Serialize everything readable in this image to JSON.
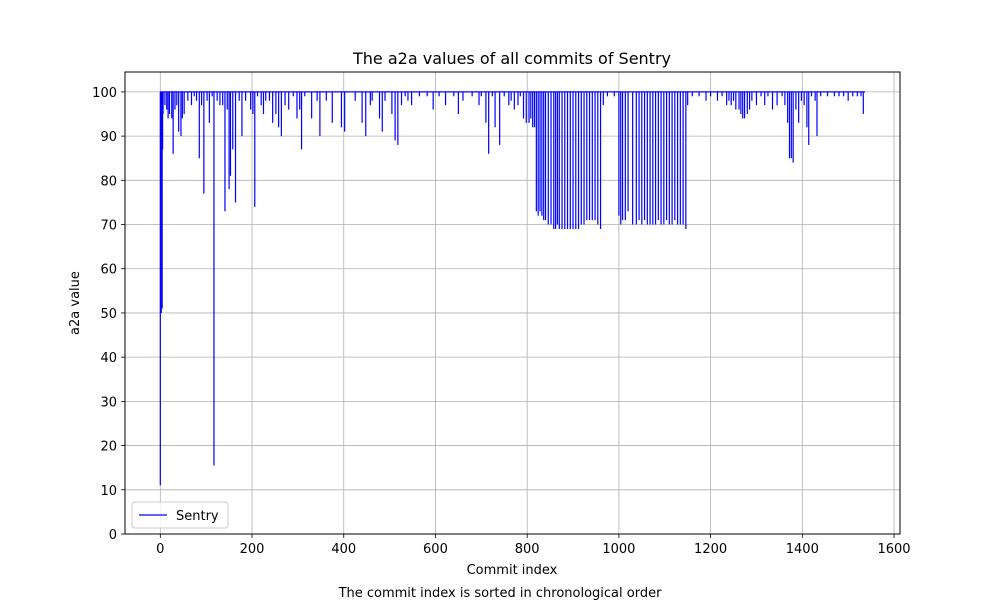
{
  "chart_data": {
    "type": "line",
    "title": "The a2a values of all commits of Sentry",
    "xlabel": "Commit index",
    "ylabel": "a2a value",
    "caption": "The commit index is sorted in chronological order",
    "xlim": [
      -77,
      1613
    ],
    "ylim": [
      0,
      104.5
    ],
    "xticks": [
      0,
      200,
      400,
      600,
      800,
      1000,
      1200,
      1400,
      1600
    ],
    "yticks": [
      0,
      10,
      20,
      30,
      40,
      50,
      60,
      70,
      80,
      90,
      100
    ],
    "grid": true,
    "legend_position": "lower-left",
    "baseline": 100,
    "series": [
      {
        "name": "Sentry",
        "color": "#0000ff",
        "x_range": [
          0,
          1537
        ],
        "dips": [
          [
            0,
            11
          ],
          [
            1,
            77
          ],
          [
            2,
            50
          ],
          [
            3,
            88
          ],
          [
            4,
            51
          ],
          [
            5,
            87
          ],
          [
            6,
            95
          ],
          [
            10,
            97
          ],
          [
            14,
            96
          ],
          [
            17,
            94
          ],
          [
            20,
            95
          ],
          [
            25,
            94
          ],
          [
            28,
            86
          ],
          [
            32,
            96
          ],
          [
            36,
            97
          ],
          [
            40,
            91
          ],
          [
            45,
            90
          ],
          [
            48,
            94
          ],
          [
            52,
            95
          ],
          [
            60,
            98
          ],
          [
            68,
            97
          ],
          [
            74,
            99
          ],
          [
            79,
            98
          ],
          [
            85,
            85
          ],
          [
            90,
            97
          ],
          [
            95,
            77
          ],
          [
            102,
            98
          ],
          [
            107,
            93
          ],
          [
            113,
            99
          ],
          [
            117,
            15.5
          ],
          [
            124,
            98
          ],
          [
            130,
            97
          ],
          [
            136,
            97
          ],
          [
            141,
            73
          ],
          [
            146,
            96
          ],
          [
            150,
            78
          ],
          [
            153,
            81
          ],
          [
            158,
            87
          ],
          [
            164,
            75
          ],
          [
            172,
            98
          ],
          [
            178,
            90
          ],
          [
            186,
            98
          ],
          [
            197,
            96
          ],
          [
            202,
            95
          ],
          [
            206,
            74
          ],
          [
            212,
            99
          ],
          [
            220,
            97
          ],
          [
            225,
            95
          ],
          [
            230,
            98
          ],
          [
            238,
            98
          ],
          [
            245,
            93
          ],
          [
            252,
            95
          ],
          [
            258,
            92
          ],
          [
            264,
            90
          ],
          [
            272,
            97
          ],
          [
            280,
            96
          ],
          [
            290,
            99
          ],
          [
            298,
            94
          ],
          [
            304,
            96
          ],
          [
            308,
            87
          ],
          [
            315,
            99
          ],
          [
            330,
            94
          ],
          [
            342,
            98
          ],
          [
            348,
            90
          ],
          [
            362,
            98
          ],
          [
            375,
            93
          ],
          [
            395,
            92
          ],
          [
            402,
            91
          ],
          [
            425,
            98
          ],
          [
            440,
            93
          ],
          [
            448,
            90
          ],
          [
            458,
            97
          ],
          [
            462,
            98
          ],
          [
            478,
            94
          ],
          [
            484,
            91
          ],
          [
            490,
            98
          ],
          [
            505,
            95
          ],
          [
            512,
            89
          ],
          [
            518,
            88
          ],
          [
            526,
            97
          ],
          [
            534,
            99
          ],
          [
            540,
            98
          ],
          [
            548,
            97
          ],
          [
            565,
            99
          ],
          [
            582,
            99
          ],
          [
            595,
            96
          ],
          [
            608,
            99
          ],
          [
            622,
            97
          ],
          [
            640,
            99
          ],
          [
            650,
            95
          ],
          [
            660,
            98
          ],
          [
            680,
            99
          ],
          [
            695,
            97
          ],
          [
            700,
            99
          ],
          [
            710,
            93
          ],
          [
            716,
            86
          ],
          [
            724,
            99
          ],
          [
            730,
            92
          ],
          [
            740,
            88
          ],
          [
            750,
            99
          ],
          [
            760,
            97
          ],
          [
            765,
            98
          ],
          [
            772,
            96
          ],
          [
            780,
            97
          ],
          [
            785,
            99
          ],
          [
            792,
            94
          ],
          [
            798,
            93
          ],
          [
            804,
            93
          ],
          [
            808,
            94
          ],
          [
            812,
            92
          ],
          [
            816,
            92
          ],
          [
            820,
            73
          ],
          [
            824,
            72
          ],
          [
            828,
            73
          ],
          [
            832,
            72
          ],
          [
            836,
            71
          ],
          [
            840,
            71
          ],
          [
            846,
            70
          ],
          [
            852,
            70
          ],
          [
            858,
            69
          ],
          [
            862,
            69
          ],
          [
            866,
            70
          ],
          [
            870,
            69
          ],
          [
            876,
            69
          ],
          [
            882,
            69
          ],
          [
            888,
            69
          ],
          [
            894,
            69
          ],
          [
            900,
            69
          ],
          [
            906,
            69
          ],
          [
            912,
            69
          ],
          [
            918,
            70
          ],
          [
            924,
            70
          ],
          [
            930,
            71
          ],
          [
            936,
            71
          ],
          [
            942,
            71
          ],
          [
            948,
            71
          ],
          [
            954,
            70
          ],
          [
            960,
            69
          ],
          [
            966,
            97
          ],
          [
            975,
            99
          ],
          [
            990,
            99
          ],
          [
            1000,
            72
          ],
          [
            1004,
            70
          ],
          [
            1008,
            71
          ],
          [
            1014,
            71
          ],
          [
            1020,
            73
          ],
          [
            1030,
            70
          ],
          [
            1038,
            70
          ],
          [
            1044,
            71
          ],
          [
            1050,
            70
          ],
          [
            1056,
            71
          ],
          [
            1062,
            70
          ],
          [
            1068,
            70
          ],
          [
            1074,
            70
          ],
          [
            1080,
            70
          ],
          [
            1086,
            71
          ],
          [
            1092,
            70
          ],
          [
            1098,
            70
          ],
          [
            1104,
            71
          ],
          [
            1110,
            70
          ],
          [
            1116,
            70
          ],
          [
            1122,
            71
          ],
          [
            1128,
            70
          ],
          [
            1134,
            70
          ],
          [
            1140,
            70
          ],
          [
            1146,
            69
          ],
          [
            1150,
            97
          ],
          [
            1160,
            99
          ],
          [
            1175,
            99
          ],
          [
            1190,
            98
          ],
          [
            1200,
            99
          ],
          [
            1215,
            98
          ],
          [
            1225,
            99
          ],
          [
            1235,
            97
          ],
          [
            1240,
            98
          ],
          [
            1245,
            97
          ],
          [
            1250,
            98
          ],
          [
            1255,
            96
          ],
          [
            1262,
            96
          ],
          [
            1266,
            95
          ],
          [
            1270,
            94
          ],
          [
            1274,
            94
          ],
          [
            1280,
            95
          ],
          [
            1285,
            96
          ],
          [
            1290,
            98
          ],
          [
            1300,
            97
          ],
          [
            1310,
            99
          ],
          [
            1318,
            97
          ],
          [
            1325,
            99
          ],
          [
            1335,
            96
          ],
          [
            1345,
            97
          ],
          [
            1356,
            99
          ],
          [
            1362,
            97
          ],
          [
            1368,
            93
          ],
          [
            1372,
            85
          ],
          [
            1376,
            85
          ],
          [
            1380,
            84
          ],
          [
            1386,
            96
          ],
          [
            1392,
            93
          ],
          [
            1398,
            98
          ],
          [
            1404,
            97
          ],
          [
            1410,
            92
          ],
          [
            1414,
            88
          ],
          [
            1420,
            99
          ],
          [
            1428,
            98
          ],
          [
            1432,
            90
          ],
          [
            1440,
            99
          ],
          [
            1455,
            99
          ],
          [
            1470,
            99
          ],
          [
            1480,
            99
          ],
          [
            1490,
            99
          ],
          [
            1500,
            98
          ],
          [
            1510,
            99
          ],
          [
            1520,
            99
          ],
          [
            1528,
            99
          ],
          [
            1533,
            95
          ]
        ]
      }
    ]
  }
}
